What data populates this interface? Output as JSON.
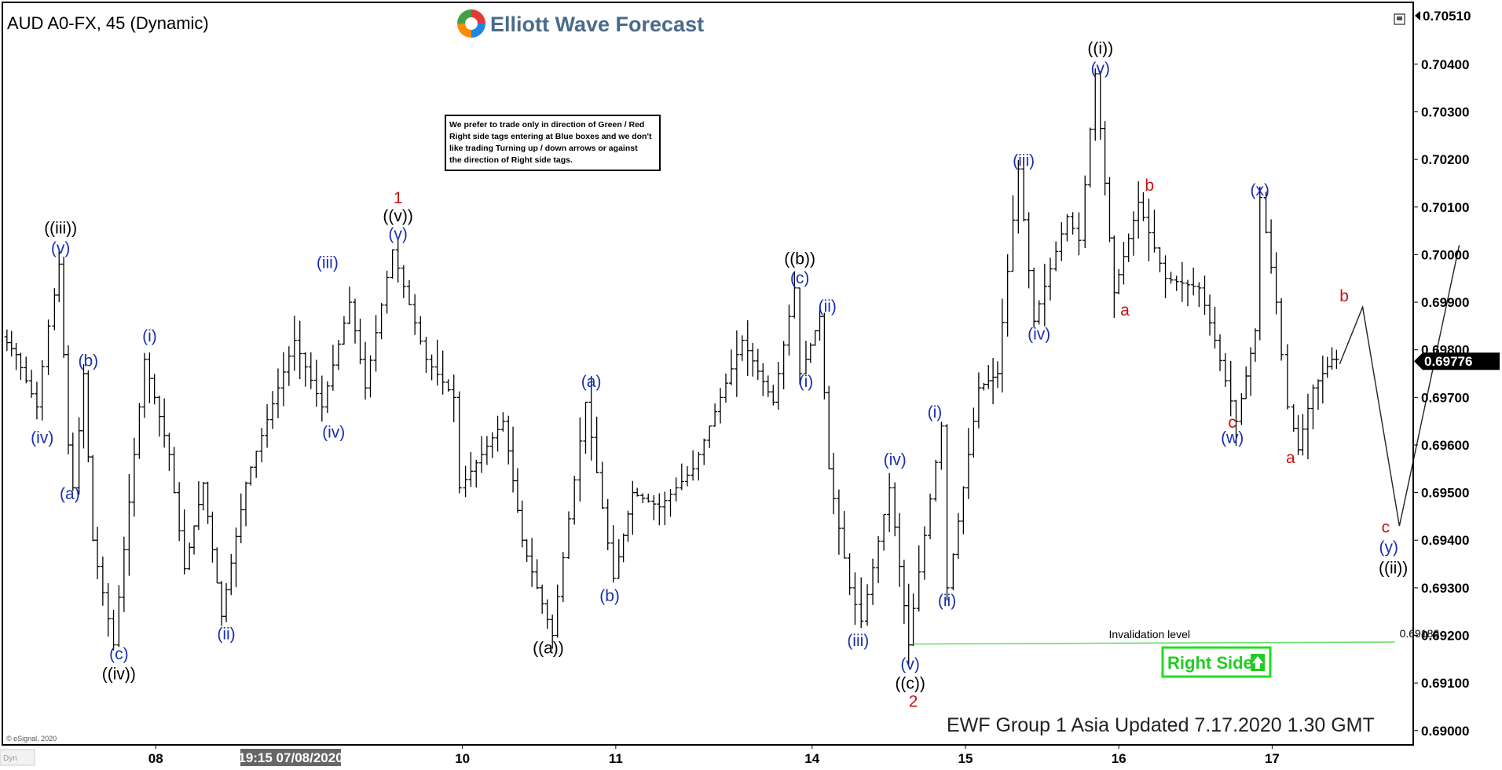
{
  "header": {
    "symbol_title": "AUD A0-FX, 45 (Dynamic)",
    "logo_text": "Elliott Wave Forecast"
  },
  "note_box": {
    "lines": [
      "We prefer to trade only in direction of Green / Red",
      "Right side tags entering at Blue boxes and we don't",
      "like trading Turning up / down arrows or against",
      "the direction of Right side tags."
    ]
  },
  "footer": {
    "update_text": "EWF Group 1 Asia Updated 7.17.2020 1.30 GMT",
    "copyright": "© eSignal, 2020",
    "dyn_label": "Dyn"
  },
  "right_side_tag": {
    "label": "Right Side",
    "arrow_icon": "up-arrow-icon",
    "color": "#22dd22"
  },
  "invalidation": {
    "label": "Invalidation level",
    "value_label": "0.69186",
    "value": 0.69186,
    "line_color": "#66dd66"
  },
  "colors": {
    "blue_labels": "#1a2fb0",
    "red_labels": "#cc1111",
    "black_labels": "#000000"
  },
  "chart_data": {
    "type": "ohlc",
    "symbol": "AUD A0-FX",
    "interval": "45",
    "ylim": [
      0.6897,
      0.7053
    ],
    "y_ticks": [
      0.69,
      0.691,
      0.692,
      0.693,
      0.694,
      0.695,
      0.696,
      0.697,
      0.698,
      0.699,
      0.7,
      0.701,
      0.702,
      0.703,
      0.704
    ],
    "y_tick_labels": [
      "0.69000",
      "0.69100",
      "0.69200",
      "0.69300",
      "0.69400",
      "0.69500",
      "0.69600",
      "0.69700",
      "0.69800",
      "0.69900",
      "0.70000",
      "0.70100",
      "0.70200",
      "0.70300",
      "0.70400"
    ],
    "y_top_label": "0.70510",
    "last_price": 0.69776,
    "last_price_label": "0.69776",
    "x_ticks": [
      {
        "t": 1.0,
        "label": "08"
      },
      {
        "t": 3.0,
        "label": "10"
      },
      {
        "t": 4.0,
        "label": "11"
      },
      {
        "t": 5.28,
        "label": "14"
      },
      {
        "t": 6.28,
        "label": "15"
      },
      {
        "t": 7.28,
        "label": "16"
      },
      {
        "t": 8.28,
        "label": "17"
      }
    ],
    "x_cursor_label": "19:15 07/08/2020",
    "x_cursor_t": 1.88,
    "xlim": [
      0.0,
      9.2
    ],
    "swings": [
      [
        0.0,
        0.6984
      ],
      [
        0.12,
        0.6979
      ],
      [
        0.26,
        0.6968
      ],
      [
        0.34,
        0.6985
      ],
      [
        0.4,
        0.6998
      ],
      [
        0.46,
        0.696
      ],
      [
        0.5,
        0.6951
      ],
      [
        0.56,
        0.6975
      ],
      [
        0.62,
        0.694
      ],
      [
        0.76,
        0.6918
      ],
      [
        0.96,
        0.6978
      ],
      [
        1.12,
        0.6958
      ],
      [
        1.22,
        0.6934
      ],
      [
        1.34,
        0.6952
      ],
      [
        1.46,
        0.6924
      ],
      [
        1.62,
        0.6952
      ],
      [
        1.94,
        0.6982
      ],
      [
        2.12,
        0.6968
      ],
      [
        2.3,
        0.699
      ],
      [
        2.4,
        0.6972
      ],
      [
        2.58,
        0.7001
      ],
      [
        2.8,
        0.6978
      ],
      [
        2.98,
        0.697
      ],
      [
        3.02,
        0.6951
      ],
      [
        3.3,
        0.6965
      ],
      [
        3.42,
        0.694
      ],
      [
        3.62,
        0.692
      ],
      [
        3.84,
        0.6969
      ],
      [
        4.02,
        0.6932
      ],
      [
        4.14,
        0.695
      ],
      [
        4.32,
        0.6947
      ],
      [
        4.54,
        0.6955
      ],
      [
        4.86,
        0.6982
      ],
      [
        5.06,
        0.6969
      ],
      [
        5.2,
        0.6993
      ],
      [
        5.24,
        0.6975
      ],
      [
        5.36,
        0.6987
      ],
      [
        5.42,
        0.6955
      ],
      [
        5.56,
        0.693
      ],
      [
        5.64,
        0.6923
      ],
      [
        5.82,
        0.6951
      ],
      [
        5.94,
        0.6918
      ],
      [
        6.16,
        0.6964
      ],
      [
        6.2,
        0.693
      ],
      [
        6.4,
        0.6972
      ],
      [
        6.52,
        0.6975
      ],
      [
        6.66,
        0.7018
      ],
      [
        6.76,
        0.6986
      ],
      [
        6.98,
        0.7008
      ],
      [
        7.06,
        0.7003
      ],
      [
        7.16,
        0.7038
      ],
      [
        7.28,
        0.6992
      ],
      [
        7.44,
        0.7011
      ],
      [
        7.62,
        0.6995
      ],
      [
        7.84,
        0.6993
      ],
      [
        7.94,
        0.6982
      ],
      [
        8.08,
        0.6965
      ],
      [
        8.2,
        0.6984
      ],
      [
        8.24,
        0.7012
      ],
      [
        8.34,
        0.699
      ],
      [
        8.42,
        0.6968
      ],
      [
        8.48,
        0.6959
      ],
      [
        8.58,
        0.6972
      ],
      [
        8.7,
        0.6978
      ]
    ],
    "projection": [
      [
        8.72,
        0.6977
      ],
      [
        8.87,
        0.6989
      ],
      [
        9.11,
        0.6943
      ],
      [
        9.5,
        0.7002
      ]
    ],
    "wave_labels": [
      {
        "text": "((iii))",
        "t": 0.38,
        "y": 0.70044,
        "color": "black"
      },
      {
        "text": "(v)",
        "t": 0.38,
        "y": 0.70002,
        "color": "blue"
      },
      {
        "text": "(b)",
        "t": 0.56,
        "y": 0.69766,
        "color": "blue"
      },
      {
        "text": "(iv)",
        "t": 0.26,
        "y": 0.69604,
        "color": "blue"
      },
      {
        "text": "(a)",
        "t": 0.44,
        "y": 0.69486,
        "color": "blue"
      },
      {
        "text": "(c)",
        "t": 0.76,
        "y": 0.6915,
        "color": "blue"
      },
      {
        "text": "((iv))",
        "t": 0.76,
        "y": 0.69108,
        "color": "black"
      },
      {
        "text": "(i)",
        "t": 0.96,
        "y": 0.69818,
        "color": "blue"
      },
      {
        "text": "(ii)",
        "t": 1.46,
        "y": 0.69192,
        "color": "blue"
      },
      {
        "text": "(iii)",
        "t": 2.12,
        "y": 0.69972,
        "color": "blue"
      },
      {
        "text": "(iv)",
        "t": 2.16,
        "y": 0.69616,
        "color": "blue"
      },
      {
        "text": "1",
        "t": 2.58,
        "y": 0.70108,
        "color": "red"
      },
      {
        "text": "((v))",
        "t": 2.58,
        "y": 0.7007,
        "color": "black"
      },
      {
        "text": "(v)",
        "t": 2.58,
        "y": 0.70032,
        "color": "blue"
      },
      {
        "text": "(a)",
        "t": 3.84,
        "y": 0.69722,
        "color": "blue"
      },
      {
        "text": "(b)",
        "t": 3.96,
        "y": 0.69272,
        "color": "blue"
      },
      {
        "text": "((a))",
        "t": 3.56,
        "y": 0.69162,
        "color": "black"
      },
      {
        "text": "((b))",
        "t": 5.2,
        "y": 0.6998,
        "color": "black"
      },
      {
        "text": "(c)",
        "t": 5.2,
        "y": 0.6994,
        "color": "blue"
      },
      {
        "text": "(ii)",
        "t": 5.38,
        "y": 0.6988,
        "color": "blue"
      },
      {
        "text": "(i)",
        "t": 5.24,
        "y": 0.69722,
        "color": "blue"
      },
      {
        "text": "(iii)",
        "t": 5.58,
        "y": 0.69178,
        "color": "blue"
      },
      {
        "text": "(iv)",
        "t": 5.82,
        "y": 0.69558,
        "color": "blue"
      },
      {
        "text": "(v)",
        "t": 5.92,
        "y": 0.69128,
        "color": "blue"
      },
      {
        "text": "((c))",
        "t": 5.92,
        "y": 0.69088,
        "color": "black"
      },
      {
        "text": "2",
        "t": 5.94,
        "y": 0.6905,
        "color": "red"
      },
      {
        "text": "(i)",
        "t": 6.08,
        "y": 0.69658,
        "color": "blue"
      },
      {
        "text": "(ii)",
        "t": 6.16,
        "y": 0.69262,
        "color": "blue"
      },
      {
        "text": "(iii)",
        "t": 6.66,
        "y": 0.70186,
        "color": "blue"
      },
      {
        "text": "(iv)",
        "t": 6.76,
        "y": 0.69822,
        "color": "blue"
      },
      {
        "text": "((i))",
        "t": 7.16,
        "y": 0.70422,
        "color": "black"
      },
      {
        "text": "(v)",
        "t": 7.16,
        "y": 0.7038,
        "color": "blue"
      },
      {
        "text": "b",
        "t": 7.48,
        "y": 0.70134,
        "color": "red"
      },
      {
        "text": "a",
        "t": 7.32,
        "y": 0.69872,
        "color": "red"
      },
      {
        "text": "(x)",
        "t": 8.2,
        "y": 0.70124,
        "color": "blue"
      },
      {
        "text": "c",
        "t": 8.02,
        "y": 0.69636,
        "color": "red"
      },
      {
        "text": "(w)",
        "t": 8.02,
        "y": 0.69604,
        "color": "blue"
      },
      {
        "text": "a",
        "t": 8.4,
        "y": 0.69562,
        "color": "red"
      },
      {
        "text": "b",
        "t": 8.75,
        "y": 0.69902,
        "color": "red"
      },
      {
        "text": "c",
        "t": 9.02,
        "y": 0.69416,
        "color": "red"
      },
      {
        "text": "(y)",
        "t": 9.04,
        "y": 0.69374,
        "color": "blue"
      },
      {
        "text": "((ii))",
        "t": 9.07,
        "y": 0.6933,
        "color": "black"
      }
    ]
  }
}
